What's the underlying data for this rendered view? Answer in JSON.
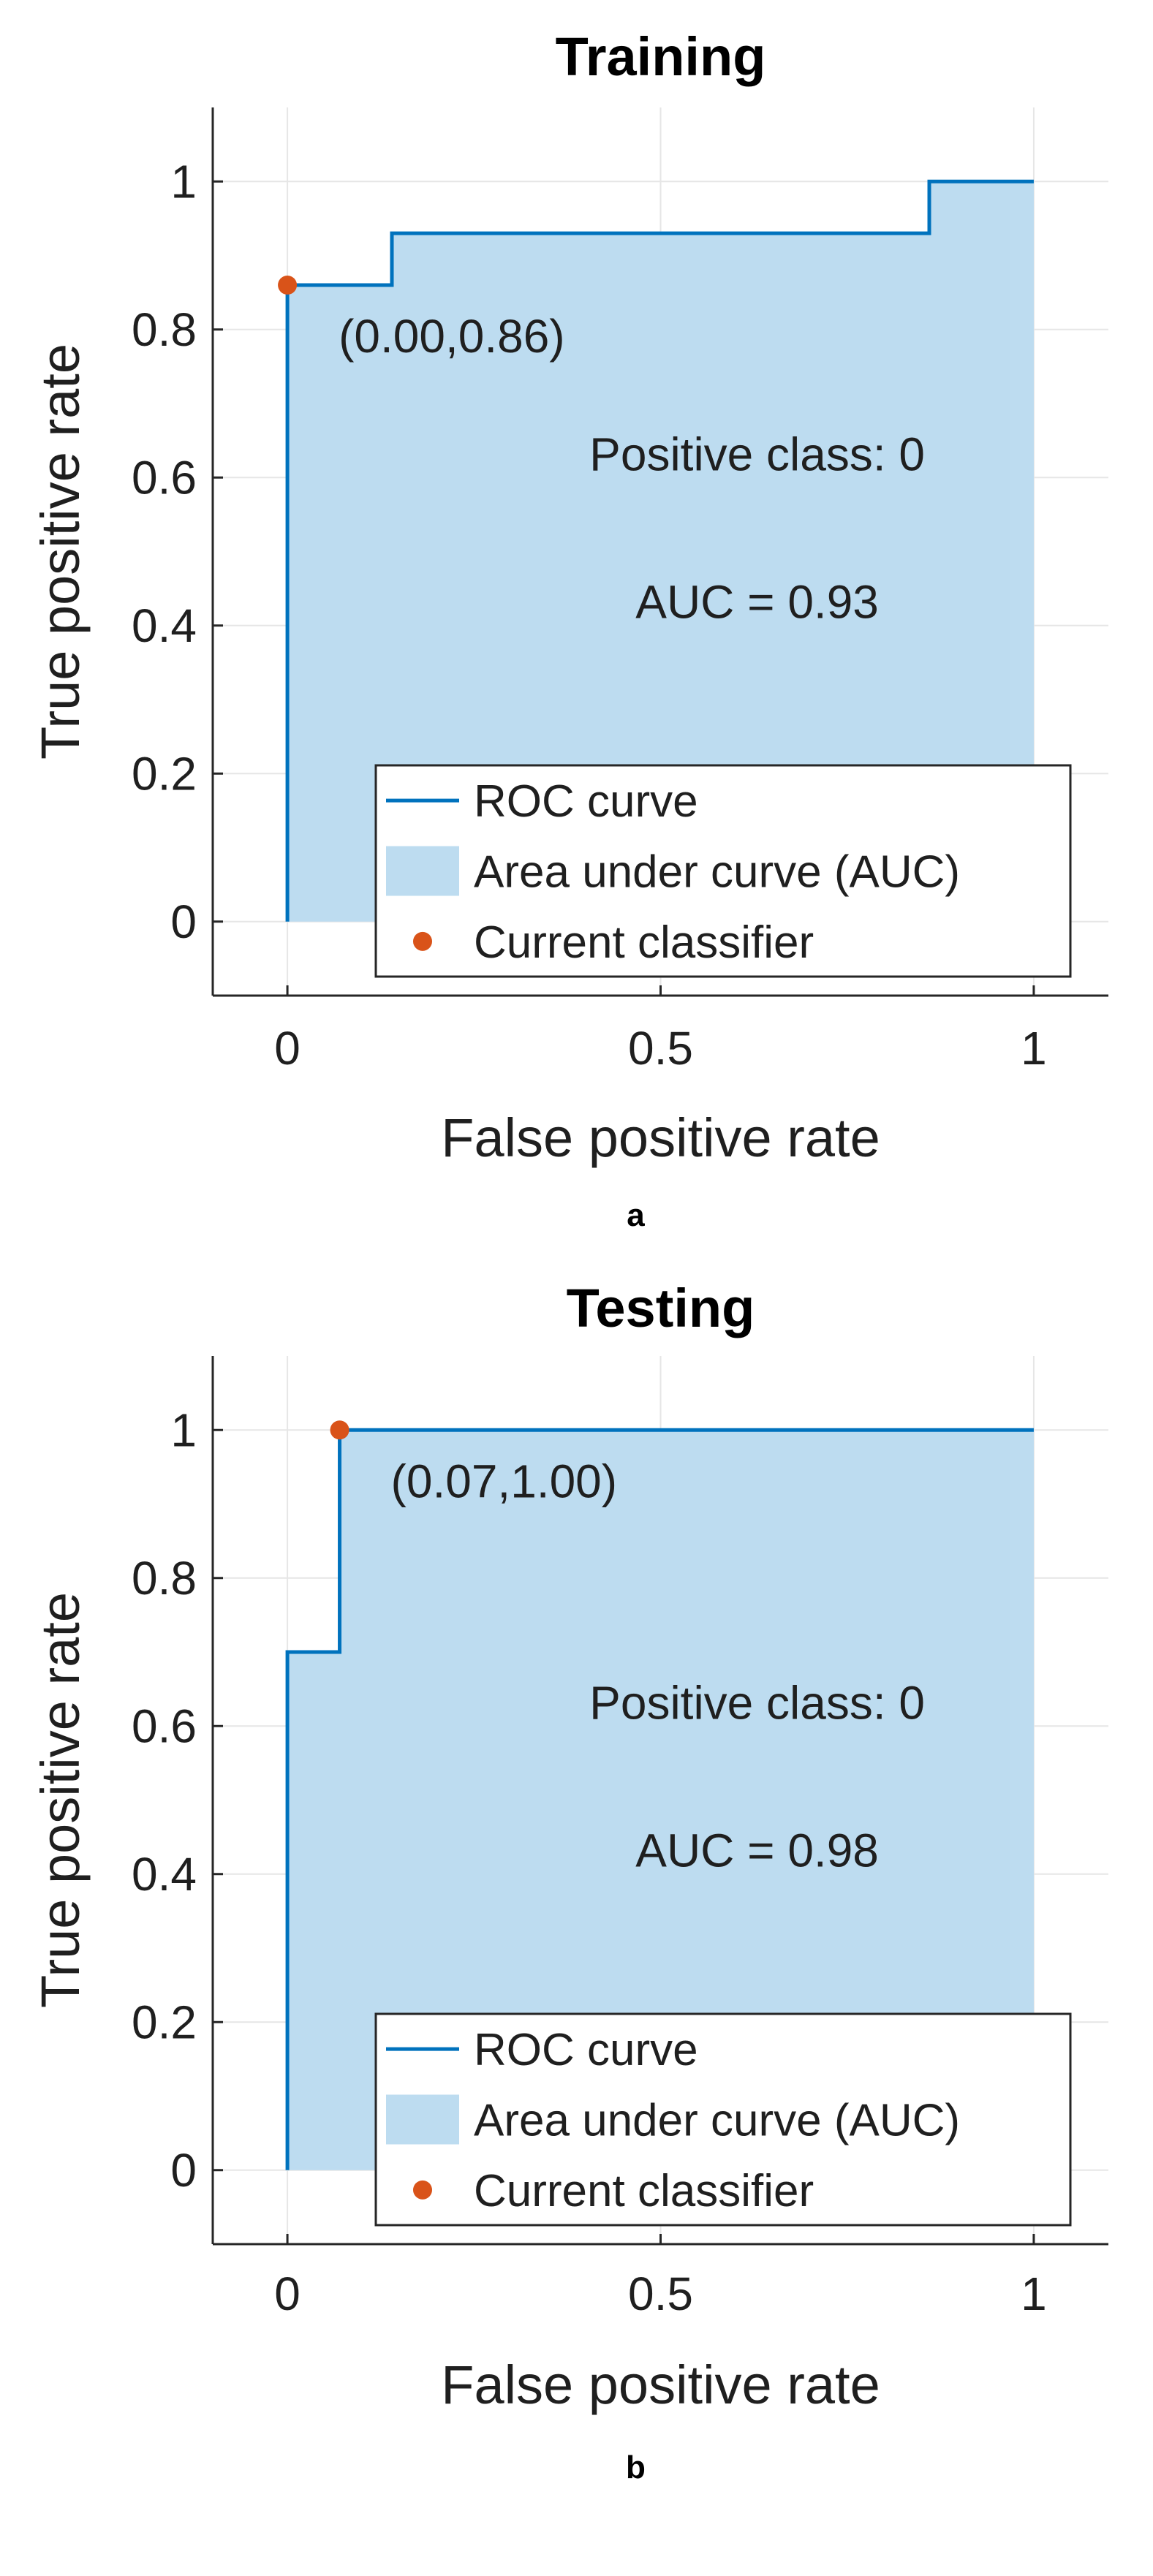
{
  "colors": {
    "curve": "#0072BD",
    "fill": "#BDDCF0",
    "point": "#D95319",
    "grid": "#E6E6E6",
    "axis": "#262626",
    "text": "#1f1f1f"
  },
  "chart_data": [
    {
      "type": "area",
      "panel_label": "a",
      "title": "Training",
      "xlabel": "False positive rate",
      "ylabel": "True positive rate",
      "xlim": [
        -0.1,
        1.1
      ],
      "ylim": [
        -0.1,
        1.1
      ],
      "xticks": [
        0,
        0.5,
        1
      ],
      "xtick_labels": [
        "0",
        "0.5",
        "1"
      ],
      "yticks": [
        0,
        0.2,
        0.4,
        0.6,
        0.8,
        1
      ],
      "ytick_labels": [
        "0",
        "0.2",
        "0.4",
        "0.6",
        "0.8",
        "1"
      ],
      "grid": true,
      "series": [
        {
          "name": "ROC curve",
          "x": [
            0,
            0,
            0.14,
            0.14,
            0.86,
            0.86,
            1
          ],
          "y": [
            0,
            0.86,
            0.86,
            0.93,
            0.93,
            1,
            1
          ]
        }
      ],
      "current_classifier": {
        "x": 0,
        "y": 0.86,
        "label": "(0.00,0.86)"
      },
      "annotation": {
        "line1": "Positive class: 0",
        "line2": "AUC = 0.93"
      },
      "legend": {
        "location": "bottom-right",
        "entries": [
          "ROC curve",
          "Area under curve (AUC)",
          "Current classifier"
        ]
      }
    },
    {
      "type": "area",
      "panel_label": "b",
      "title": "Testing",
      "xlabel": "False positive rate",
      "ylabel": "True positive rate",
      "xlim": [
        -0.1,
        1.1
      ],
      "ylim": [
        -0.1,
        1.1
      ],
      "xticks": [
        0,
        0.5,
        1
      ],
      "xtick_labels": [
        "0",
        "0.5",
        "1"
      ],
      "yticks": [
        0,
        0.2,
        0.4,
        0.6,
        0.8,
        1
      ],
      "ytick_labels": [
        "0",
        "0.2",
        "0.4",
        "0.6",
        "0.8",
        "1"
      ],
      "grid": true,
      "series": [
        {
          "name": "ROC curve",
          "x": [
            0,
            0,
            0.07,
            0.07,
            1
          ],
          "y": [
            0,
            0.7,
            0.7,
            1,
            1
          ]
        }
      ],
      "current_classifier": {
        "x": 0.07,
        "y": 1.0,
        "label": "(0.07,1.00)"
      },
      "annotation": {
        "line1": "Positive class: 0",
        "line2": "AUC = 0.98"
      },
      "legend": {
        "location": "bottom-right",
        "entries": [
          "ROC curve",
          "Area under curve (AUC)",
          "Current classifier"
        ]
      }
    }
  ]
}
